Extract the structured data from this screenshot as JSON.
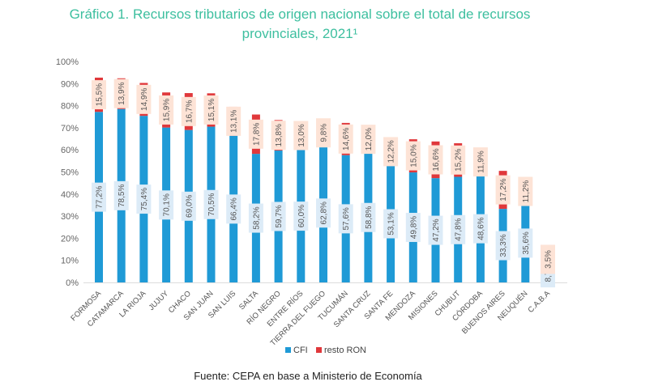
{
  "chart_data": {
    "type": "bar",
    "stacked": true,
    "title": "Gráfico 1. Recursos tributarios de origen nacional sobre el total de recursos provinciales, 2021¹",
    "categories": [
      "FORMOSA",
      "CATAMARCA",
      "LA RIOJA",
      "JUJUY",
      "CHACO",
      "SAN JUAN",
      "SAN LUIS",
      "SALTA",
      "RÍO NEGRO",
      "ENTRE RÍOS",
      "TIERRA DEL FUEGO",
      "TUCUMÁN",
      "SANTA CRUZ",
      "SANTA FE",
      "MENDOZA",
      "MISIONES",
      "CHUBUT",
      "CÓRDOBA",
      "BUENOS AIRES",
      "NEUQUÉN",
      "C.A.B.A"
    ],
    "series": [
      {
        "name": "CFI",
        "color": "#1f9ad6",
        "values": [
          77.2,
          78.5,
          75.4,
          70.1,
          69.0,
          70.5,
          66.4,
          58.2,
          59.7,
          60.0,
          62.8,
          57.6,
          58.8,
          53.1,
          49.8,
          47.2,
          47.8,
          48.6,
          33.3,
          35.6,
          8.7
        ]
      },
      {
        "name": "resto RON",
        "color": "#e0383b",
        "values": [
          15.5,
          13.9,
          14.9,
          15.9,
          16.7,
          15.1,
          13.1,
          17.8,
          13.8,
          13.0,
          9.8,
          14.6,
          12.0,
          12.2,
          15.0,
          16.6,
          15.2,
          11.9,
          17.2,
          11.2,
          3.5
        ]
      }
    ],
    "ylim": [
      0,
      100
    ],
    "yticks": [
      "0%",
      "10%",
      "20%",
      "30%",
      "40%",
      "50%",
      "60%",
      "70%",
      "80%",
      "90%",
      "100%"
    ],
    "legend": "bottom",
    "grid": false,
    "source": "Fuente: CEPA en base a Ministerio de Economía"
  }
}
